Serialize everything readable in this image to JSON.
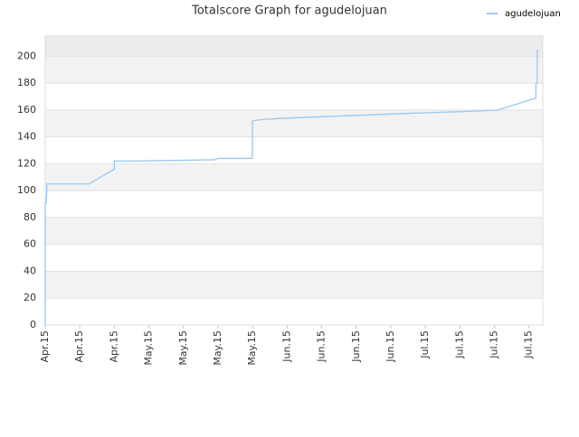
{
  "chart_data": {
    "type": "line",
    "title": "Totalscore Graph for agudelojuan",
    "xlim": [
      0,
      14.4
    ],
    "ylim": [
      0,
      215
    ],
    "xticks": [
      {
        "value": 0,
        "label": "Apr.15"
      },
      {
        "value": 1,
        "label": "Apr.15"
      },
      {
        "value": 2,
        "label": "Apr.15"
      },
      {
        "value": 3,
        "label": "May.15"
      },
      {
        "value": 4,
        "label": "May.15"
      },
      {
        "value": 5,
        "label": "May.15"
      },
      {
        "value": 6,
        "label": "May.15"
      },
      {
        "value": 7,
        "label": "Jun.15"
      },
      {
        "value": 8,
        "label": "Jun.15"
      },
      {
        "value": 9,
        "label": "Jun.15"
      },
      {
        "value": 10,
        "label": "Jun.15"
      },
      {
        "value": 11,
        "label": "Jul.15"
      },
      {
        "value": 12,
        "label": "Jul.15"
      },
      {
        "value": 13,
        "label": "Jul.15"
      },
      {
        "value": 14,
        "label": "Jul.15"
      }
    ],
    "yticks": [
      0,
      20,
      40,
      60,
      80,
      100,
      120,
      140,
      160,
      180,
      200
    ],
    "grid": true,
    "legend": "top-right",
    "series": [
      {
        "name": "agudelojuan",
        "color": "#99c8f0",
        "x": [
          0,
          0,
          0.03,
          0.05,
          1.27,
          2.0,
          2.0,
          2.5,
          4.9,
          5.0,
          5.99,
          6.0,
          6.3,
          7.0,
          8.0,
          9.0,
          10.0,
          11.0,
          12.3,
          13.1,
          14.2,
          14.2,
          14.24,
          14.24
        ],
        "values": [
          0,
          91,
          91,
          105,
          105,
          116,
          122,
          122,
          123,
          124,
          124,
          152,
          153,
          154,
          155,
          156,
          157,
          158,
          159,
          160,
          169,
          180,
          180,
          205
        ]
      }
    ]
  }
}
